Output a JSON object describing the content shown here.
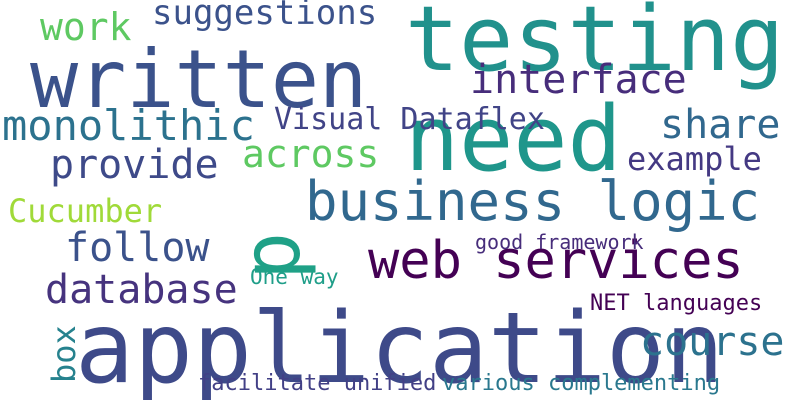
{
  "words": {
    "testing": {
      "text": "testing",
      "color": "#21918c"
    },
    "written": {
      "text": "written",
      "color": "#3b528b"
    },
    "need": {
      "text": "need",
      "color": "#1f968b"
    },
    "application": {
      "text": "application",
      "color": "#3e4a89"
    },
    "web_services": {
      "text": "web services",
      "color": "#440154"
    },
    "business_logic": {
      "text": "business logic",
      "color": "#31688e"
    },
    "p": {
      "text": "p",
      "color": "#1fa187"
    },
    "monolithic": {
      "text": "monolithic",
      "color": "#2c728e"
    },
    "interface": {
      "text": "interface",
      "color": "#472d7b"
    },
    "suggestions": {
      "text": "suggestions",
      "color": "#3b528b"
    },
    "work": {
      "text": "work",
      "color": "#5ec962"
    },
    "across": {
      "text": "across",
      "color": "#5ec962"
    },
    "provide": {
      "text": "provide",
      "color": "#3e4a89"
    },
    "share": {
      "text": "share",
      "color": "#31688e"
    },
    "visual_dataflex": {
      "text": "Visual Dataflex",
      "color": "#414487"
    },
    "example": {
      "text": "example",
      "color": "#443983"
    },
    "cucumber": {
      "text": "Cucumber",
      "color": "#a0da39"
    },
    "follow": {
      "text": "follow",
      "color": "#3b528b"
    },
    "database": {
      "text": "database",
      "color": "#46337e"
    },
    "good_framework": {
      "text": "good framework",
      "color": "#472d7b"
    },
    "one_way": {
      "text": "One way",
      "color": "#1f9e89"
    },
    "course": {
      "text": "course",
      "color": "#2c728e"
    },
    "net_languages": {
      "text": "NET languages",
      "color": "#440154"
    },
    "box": {
      "text": "box",
      "color": "#26828e"
    },
    "facilitate_unified": {
      "text": "facilitate unified",
      "color": "#424086"
    },
    "various_complementing": {
      "text": "various complementing",
      "color": "#2a788e"
    }
  }
}
